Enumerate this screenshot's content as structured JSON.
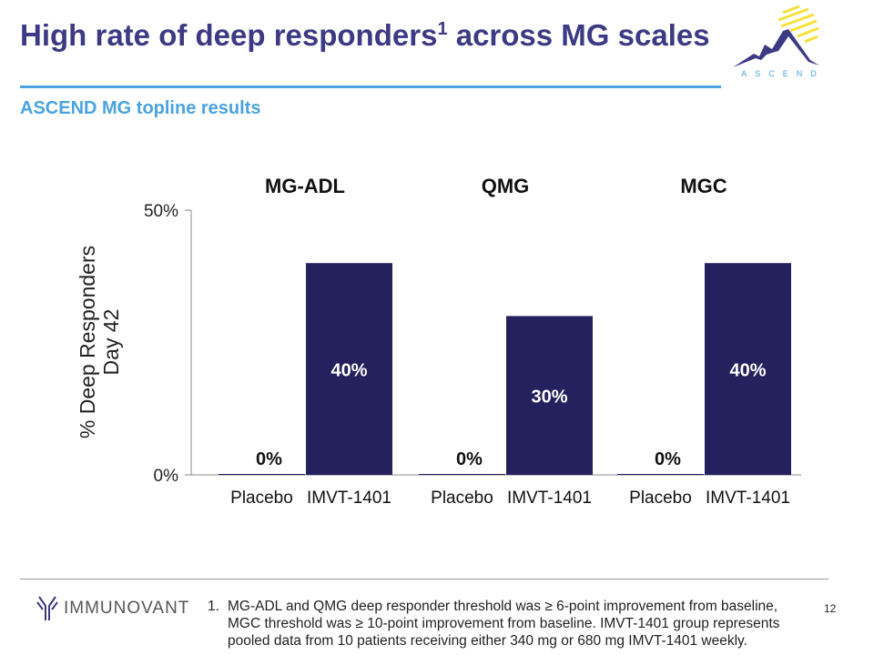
{
  "header": {
    "title": "High rate of deep responders",
    "title_sup": "1",
    "title_rest": " across MG scales",
    "subtitle": "ASCEND MG topline results"
  },
  "logos": {
    "ascend": "ASCEND",
    "immunovant": "IMMUNOVANT"
  },
  "chart_data": {
    "type": "bar",
    "ylabel": "% Deep Responders Day 42",
    "ylim": [
      0,
      50
    ],
    "yticks": [
      "0%",
      "50%"
    ],
    "groups": [
      {
        "name": "MG-ADL",
        "categories": [
          "Placebo",
          "IMVT-1401"
        ],
        "values": [
          0,
          40
        ],
        "labels": [
          "0%",
          "40%"
        ]
      },
      {
        "name": "QMG",
        "categories": [
          "Placebo",
          "IMVT-1401"
        ],
        "values": [
          0,
          30
        ],
        "labels": [
          "0%",
          "30%"
        ]
      },
      {
        "name": "MGC",
        "categories": [
          "Placebo",
          "IMVT-1401"
        ],
        "values": [
          0,
          40
        ],
        "labels": [
          "0%",
          "40%"
        ]
      }
    ],
    "bar_color": "#25215e"
  },
  "footer": {
    "num": "1.",
    "note": "MG-ADL and QMG deep responder threshold was ≥ 6-point improvement from baseline, MGC threshold was ≥ 10-point improvement from baseline. IMVT-1401 group represents pooled data from 10 patients receiving either 340 mg or 680 mg IMVT-1401 weekly.",
    "page": "12"
  }
}
